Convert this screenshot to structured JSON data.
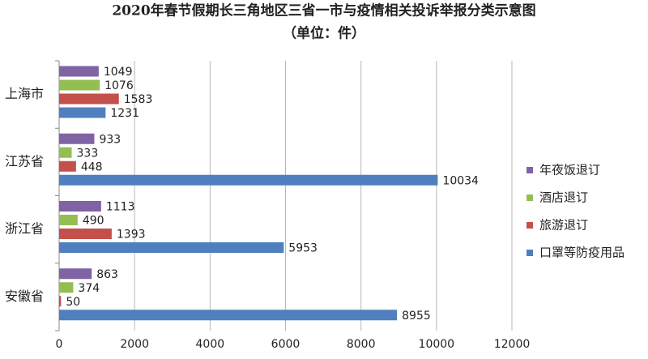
{
  "chart_data": {
    "type": "bar",
    "orientation": "horizontal",
    "title": "2020年春节假期长三角地区三省一市与疫情相关投诉举报分类示意图",
    "subtitle": "（单位：件）",
    "categories": [
      "上海市",
      "江苏省",
      "浙江省",
      "安徽省"
    ],
    "series": [
      {
        "name": "年夜饭退订",
        "color": "#7f63a3",
        "values": [
          1049,
          933,
          1113,
          863
        ]
      },
      {
        "name": "酒店退订",
        "color": "#93be52",
        "values": [
          1076,
          333,
          490,
          374
        ]
      },
      {
        "name": "旅游退订",
        "color": "#c4504c",
        "values": [
          1583,
          448,
          1393,
          50
        ]
      },
      {
        "name": "口罩等防疫用品",
        "color": "#4f7fbf",
        "values": [
          1231,
          10034,
          5953,
          8955
        ]
      }
    ],
    "xlim": [
      0,
      12000
    ],
    "xticks": [
      0,
      2000,
      4000,
      6000,
      8000,
      10000,
      12000
    ],
    "grid": true,
    "legend": "right"
  }
}
